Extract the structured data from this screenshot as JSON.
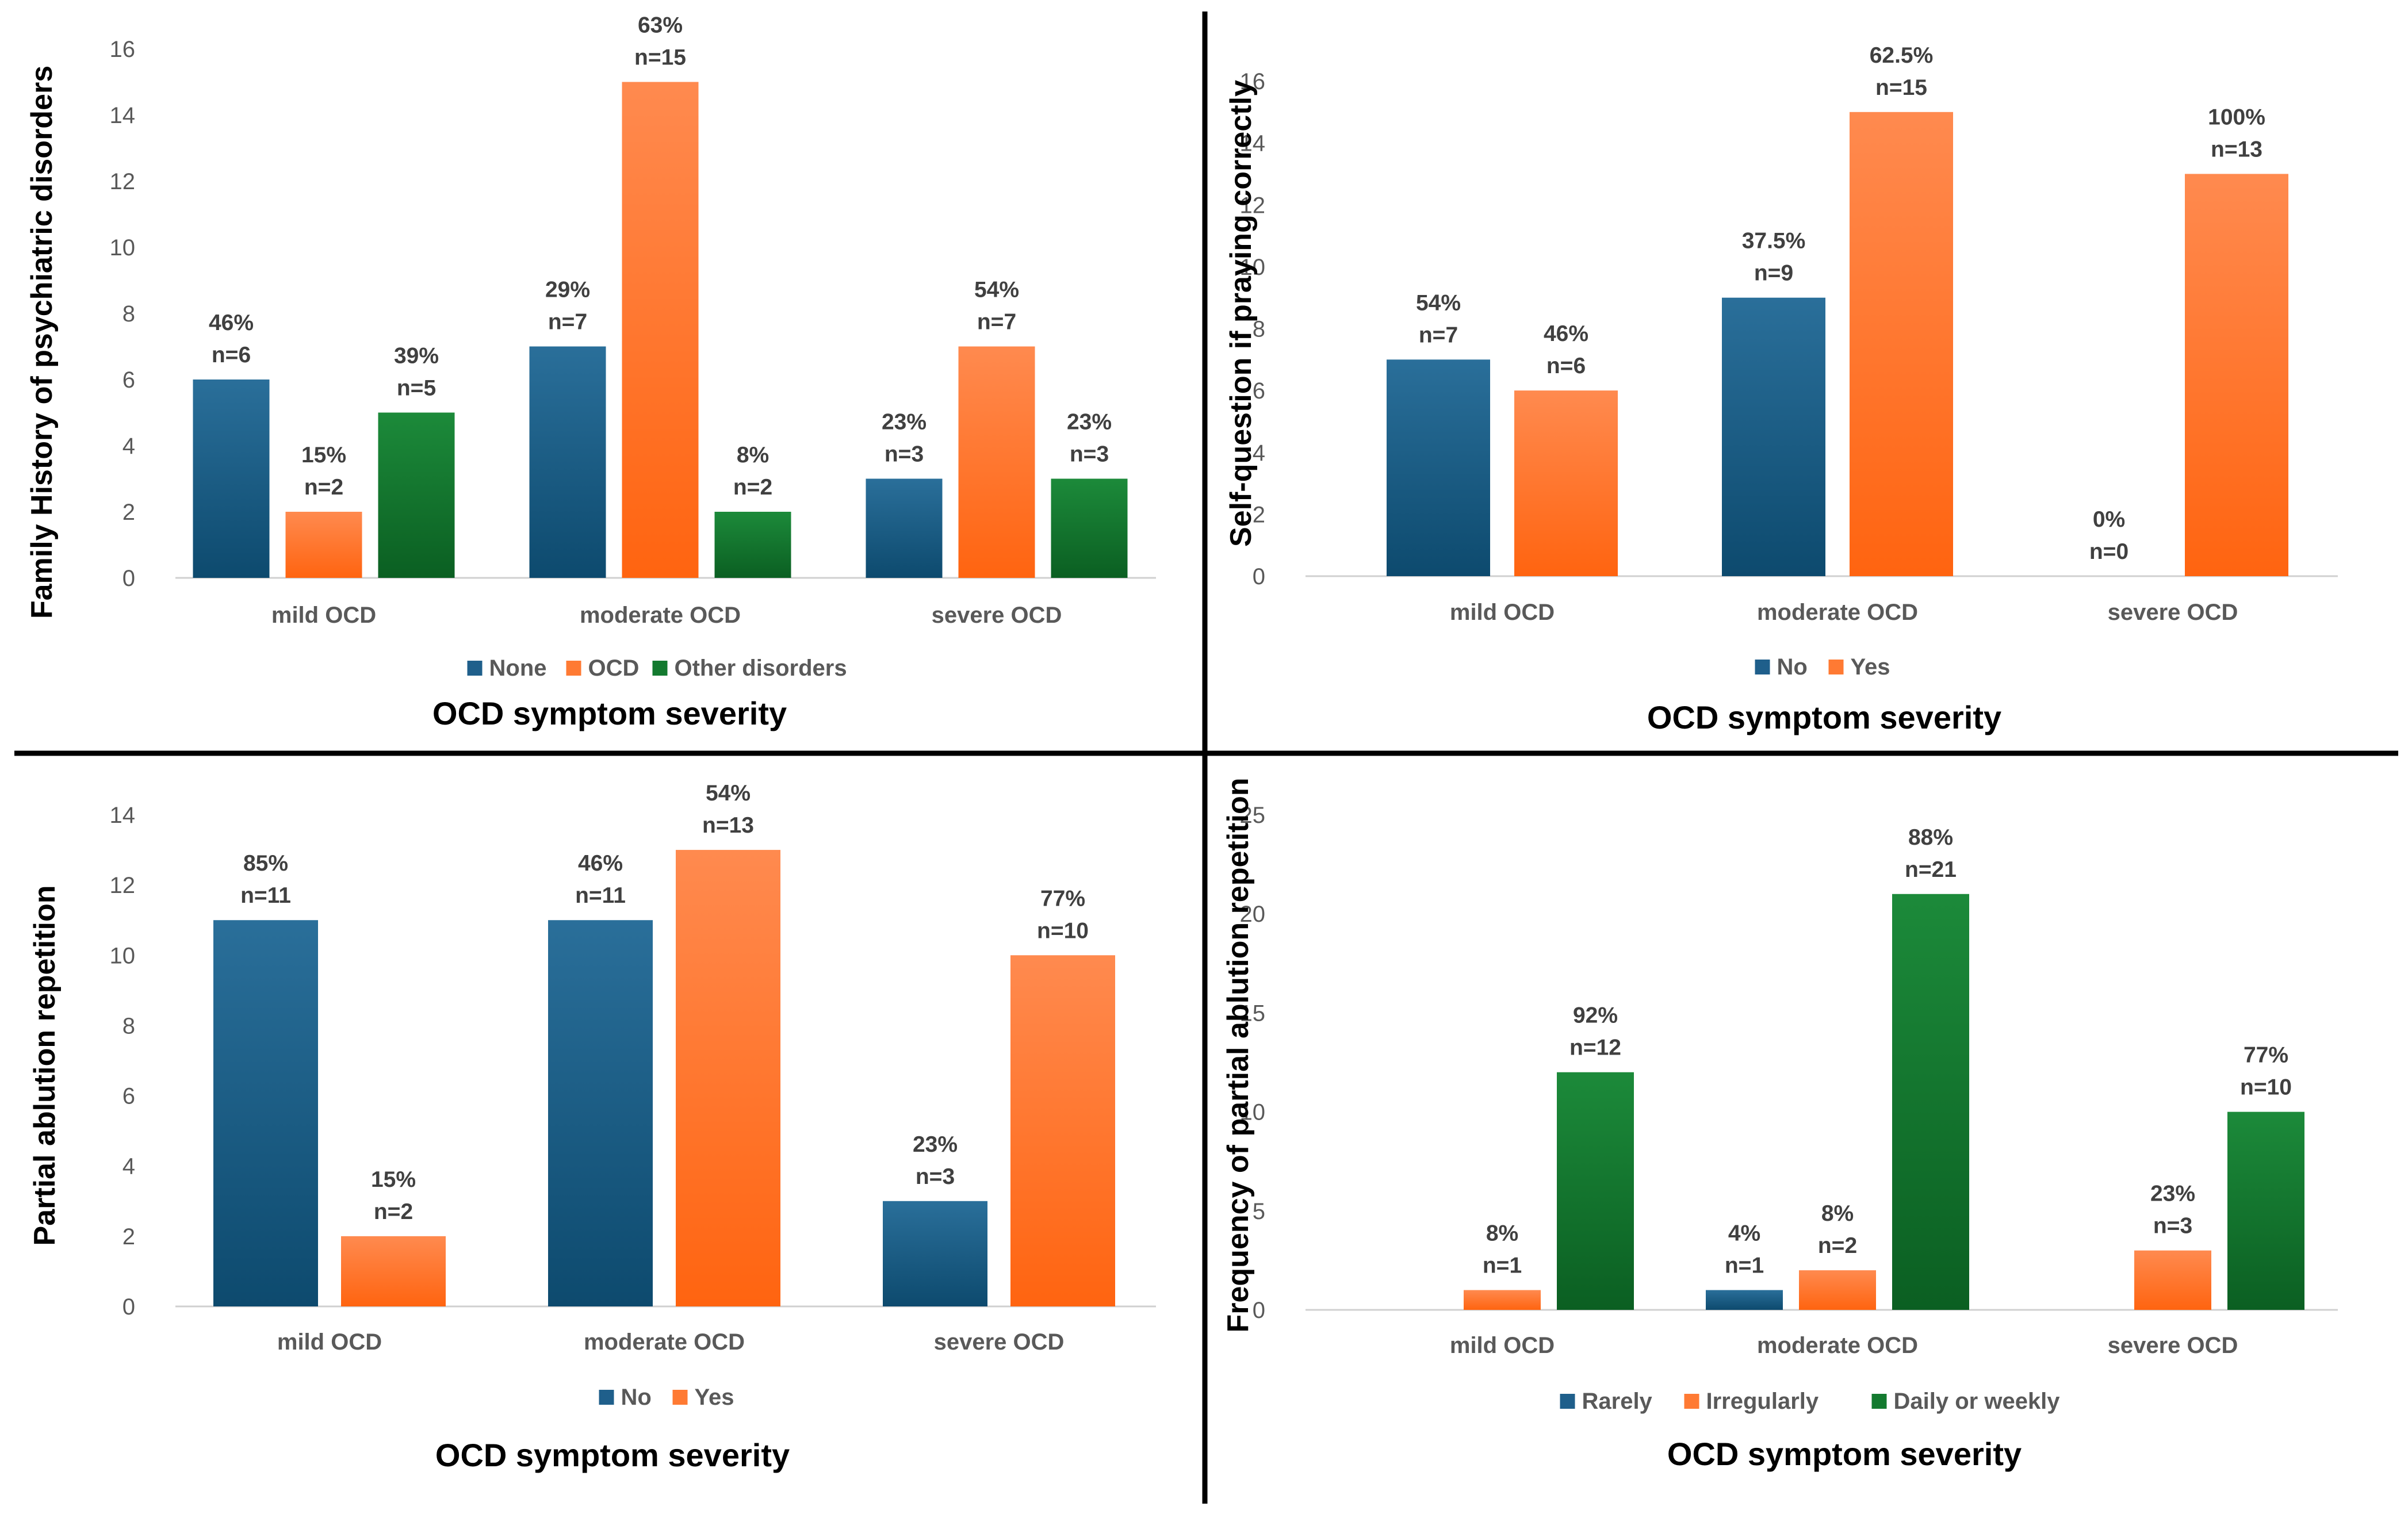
{
  "colors": {
    "None": "#1f5f8b",
    "No": "#1f5f8b",
    "Rarely": "#1f5f8b",
    "OCD": "#ff7a33",
    "Yes": "#ff7a33",
    "Irregularly": "#ff7a33",
    "Other disorders": "#137a2f",
    "Daily or weekly": "#137a2f"
  },
  "chart_data": [
    {
      "type": "bar",
      "xlabel": "OCD symptom severity",
      "ylabel": "Family History of psychiatric disorders",
      "categories": [
        "mild OCD",
        "moderate OCD",
        "severe OCD"
      ],
      "ylim": [
        0,
        16
      ],
      "yticks": [
        0,
        2,
        4,
        6,
        8,
        10,
        12,
        14,
        16
      ],
      "legend_position": "bottom",
      "series": [
        {
          "name": "None",
          "values": [
            6,
            7,
            3
          ],
          "labels": [
            "46%\nn=6",
            "29%\nn=7",
            "23%\nn=3"
          ]
        },
        {
          "name": "OCD",
          "values": [
            2,
            15,
            7
          ],
          "labels": [
            "15%\nn=2",
            "63%\nn=15",
            "54%\nn=7"
          ]
        },
        {
          "name": "Other disorders",
          "values": [
            5,
            2,
            3
          ],
          "labels": [
            "39%\nn=5",
            "8%\nn=2",
            "23%\nn=3"
          ]
        }
      ]
    },
    {
      "type": "bar",
      "xlabel": "OCD symptom severity",
      "ylabel": "Self-question if praying correctly",
      "categories": [
        "mild OCD",
        "moderate OCD",
        "severe OCD"
      ],
      "ylim": [
        0,
        16
      ],
      "yticks": [
        0,
        2,
        4,
        6,
        8,
        10,
        12,
        14,
        16
      ],
      "legend_position": "bottom",
      "series": [
        {
          "name": "No",
          "values": [
            7,
            9,
            0
          ],
          "labels": [
            "54%\nn=7",
            "37.5%\nn=9",
            "0%\nn=0"
          ]
        },
        {
          "name": "Yes",
          "values": [
            6,
            15,
            13
          ],
          "labels": [
            "46%\nn=6",
            "62.5%\nn=15",
            "100%\nn=13"
          ]
        }
      ]
    },
    {
      "type": "bar",
      "xlabel": "OCD symptom severity",
      "ylabel": "Partial ablution repetition",
      "categories": [
        "mild OCD",
        "moderate OCD",
        "severe OCD"
      ],
      "ylim": [
        0,
        14
      ],
      "yticks": [
        0,
        2,
        4,
        6,
        8,
        10,
        12,
        14
      ],
      "legend_position": "bottom",
      "series": [
        {
          "name": "No",
          "values": [
            11,
            11,
            3
          ],
          "labels": [
            "85%\nn=11",
            "46%\nn=11",
            "23%\nn=3"
          ]
        },
        {
          "name": "Yes",
          "values": [
            2,
            13,
            10
          ],
          "labels": [
            "15%\nn=2",
            "54%\nn=13",
            "77%\nn=10"
          ]
        }
      ]
    },
    {
      "type": "bar",
      "xlabel": "OCD symptom severity",
      "ylabel": "Frequency of partial ablution repetition",
      "categories": [
        "mild OCD",
        "moderate OCD",
        "severe OCD"
      ],
      "ylim": [
        0,
        25
      ],
      "yticks": [
        0,
        5,
        10,
        15,
        20,
        25
      ],
      "legend_position": "bottom",
      "series": [
        {
          "name": "Rarely",
          "values": [
            0,
            1,
            0
          ],
          "labels": [
            "",
            "4%\nn=1",
            ""
          ]
        },
        {
          "name": "Irregularly",
          "values": [
            1,
            2,
            3
          ],
          "labels": [
            "8%\nn=1",
            "8%\nn=2",
            "23%\nn=3"
          ]
        },
        {
          "name": "Daily or weekly",
          "values": [
            12,
            21,
            10
          ],
          "labels": [
            "92%\nn=12",
            "88%\nn=21",
            "77%\nn=10"
          ]
        }
      ]
    }
  ]
}
